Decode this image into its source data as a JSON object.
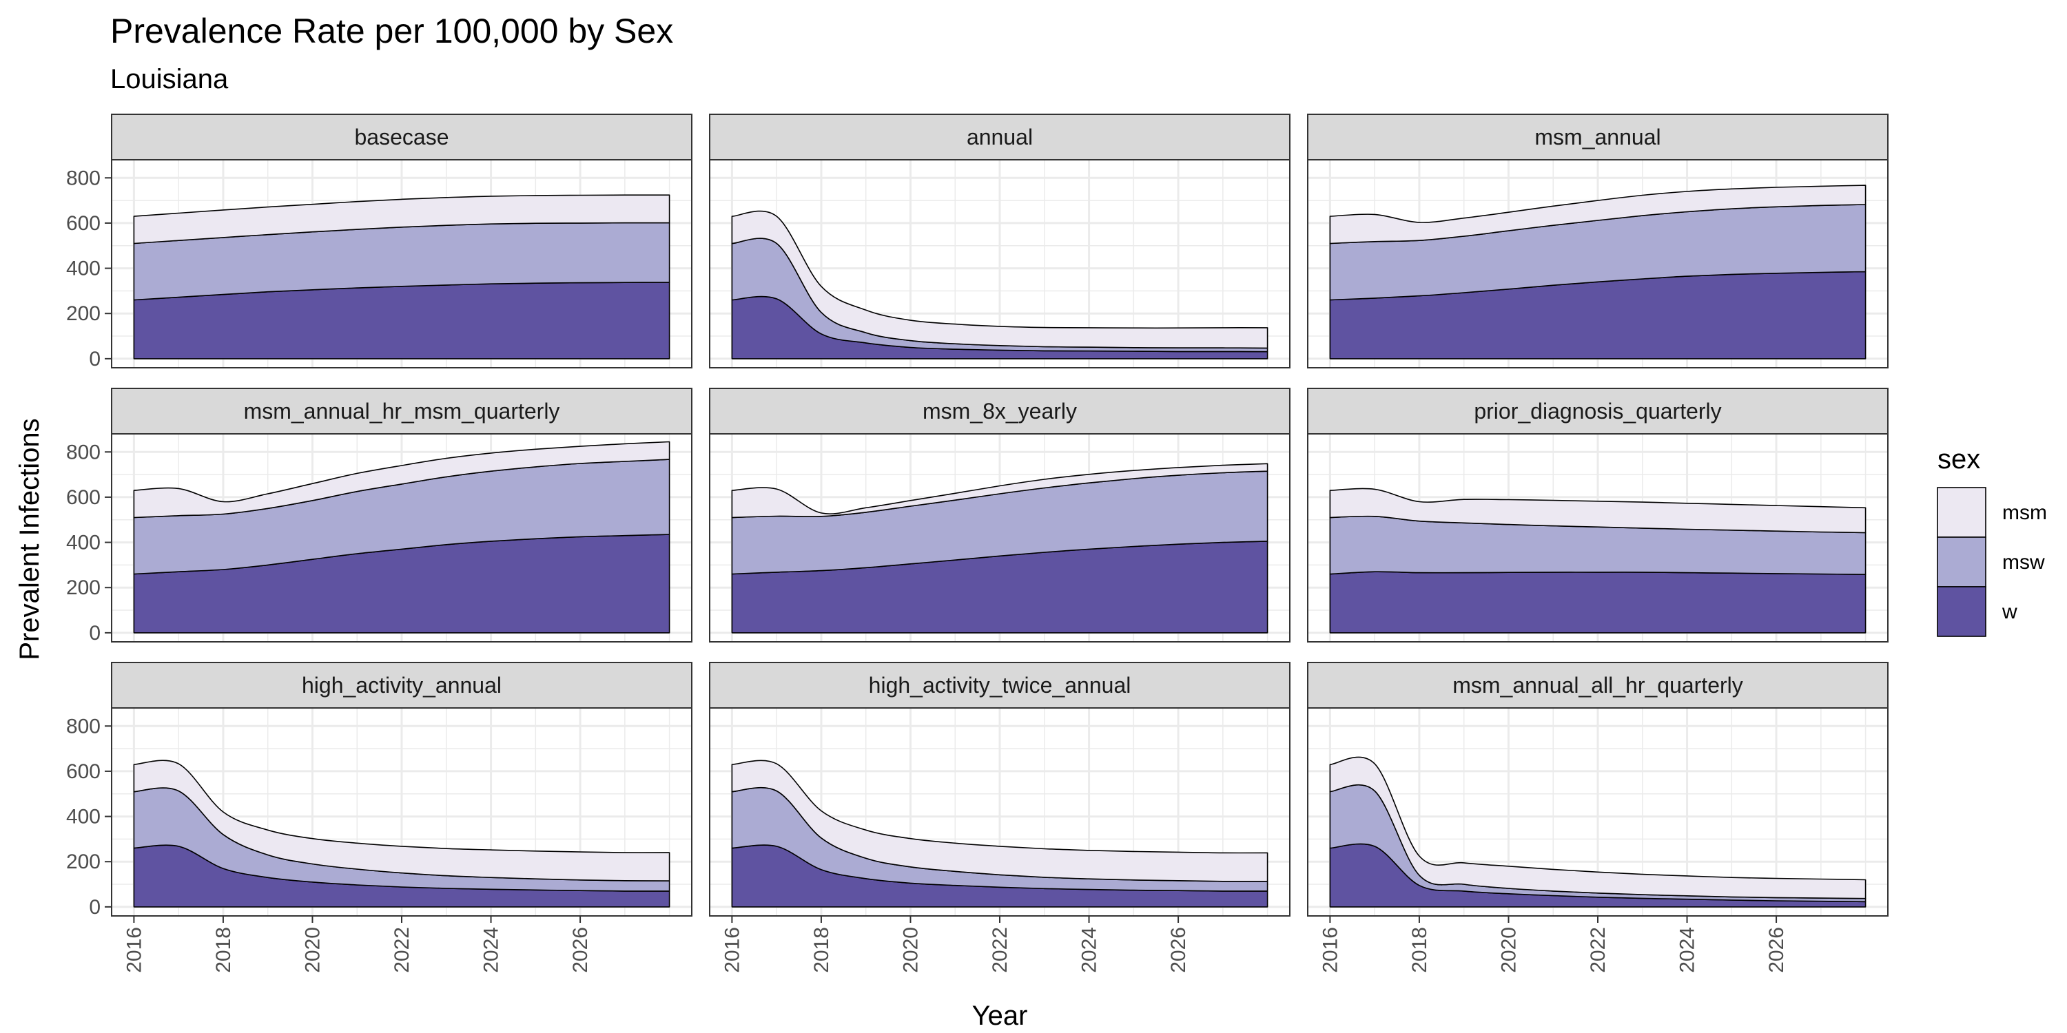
{
  "chart_data": {
    "type": "area",
    "title": "Prevalence Rate per 100,000 by Sex",
    "subtitle": "Louisiana",
    "xlabel": "Year",
    "ylabel": "Prevalent Infections",
    "xlim": [
      2015.5,
      2028.5
    ],
    "ylim": [
      -40,
      880
    ],
    "x_ticks": [
      2016,
      2018,
      2020,
      2022,
      2024,
      2026
    ],
    "y_ticks": [
      0,
      200,
      400,
      600,
      800
    ],
    "grid": true,
    "stacked": true,
    "legend": {
      "title": "sex",
      "position": "right",
      "entries": [
        "msm",
        "msw",
        "w"
      ]
    },
    "colors": {
      "msm": "#ece8f2",
      "msw": "#ababd3",
      "w": "#5f53a1",
      "outline": "#000000",
      "strip_bg": "#d9d9d9"
    },
    "x": [
      2016,
      2017,
      2018,
      2019,
      2020,
      2021,
      2022,
      2023,
      2024,
      2025,
      2026,
      2027,
      2028
    ],
    "panels": [
      {
        "name": "basecase",
        "series": [
          {
            "name": "w",
            "values": [
              260,
              272,
              284,
              296,
              305,
              313,
              320,
              326,
              331,
              334,
              336,
              337,
              338
            ]
          },
          {
            "name": "msw",
            "values": [
              250,
              251,
              252,
              253,
              256,
              259,
              262,
              264,
              265,
              265,
              264,
              264,
              263
            ]
          },
          {
            "name": "msm",
            "values": [
              120,
              121,
              122,
              122,
              122,
              123,
              123,
              123,
              123,
              123,
              123,
              123,
              123
            ]
          }
        ]
      },
      {
        "name": "annual",
        "series": [
          {
            "name": "w",
            "values": [
              260,
              265,
              110,
              70,
              50,
              42,
              38,
              35,
              34,
              33,
              32,
              32,
              31
            ]
          },
          {
            "name": "msw",
            "values": [
              250,
              245,
              95,
              45,
              30,
              24,
              20,
              18,
              17,
              16,
              16,
              16,
              16
            ]
          },
          {
            "name": "msm",
            "values": [
              120,
              120,
              115,
              100,
              90,
              87,
              85,
              85,
              86,
              87,
              88,
              89,
              90
            ]
          }
        ]
      },
      {
        "name": "msm_annual",
        "series": [
          {
            "name": "w",
            "values": [
              260,
              268,
              278,
              292,
              308,
              325,
              340,
              353,
              365,
              373,
              378,
              382,
              385
            ]
          },
          {
            "name": "msw",
            "values": [
              250,
              250,
              245,
              250,
              258,
              265,
              272,
              280,
              285,
              290,
              294,
              296,
              297
            ]
          },
          {
            "name": "msm",
            "values": [
              120,
              120,
              80,
              80,
              82,
              85,
              88,
              90,
              90,
              88,
              86,
              85,
              85
            ]
          }
        ]
      },
      {
        "name": "msm_annual_hr_msm_quarterly",
        "series": [
          {
            "name": "w",
            "values": [
              260,
              270,
              280,
              300,
              325,
              350,
              370,
              390,
              405,
              416,
              425,
              430,
              435
            ]
          },
          {
            "name": "msw",
            "values": [
              250,
              248,
              245,
              250,
              260,
              275,
              288,
              300,
              310,
              318,
              324,
              328,
              332
            ]
          },
          {
            "name": "msm",
            "values": [
              120,
              120,
              55,
              65,
              75,
              80,
              82,
              82,
              80,
              78,
              76,
              78,
              78
            ]
          }
        ]
      },
      {
        "name": "msm_8x_yearly",
        "series": [
          {
            "name": "w",
            "values": [
              260,
              268,
              275,
              288,
              305,
              322,
              340,
              356,
              370,
              382,
              392,
              400,
              405
            ]
          },
          {
            "name": "msw",
            "values": [
              250,
              248,
              240,
              245,
              255,
              265,
              275,
              285,
              293,
              300,
              305,
              308,
              310
            ]
          },
          {
            "name": "msm",
            "values": [
              120,
              120,
              15,
              20,
              25,
              30,
              35,
              38,
              38,
              36,
              34,
              33,
              33
            ]
          }
        ]
      },
      {
        "name": "prior_diagnosis_quarterly",
        "series": [
          {
            "name": "w",
            "values": [
              260,
              270,
              266,
              266,
              267,
              268,
              268,
              268,
              266,
              264,
              262,
              260,
              258
            ]
          },
          {
            "name": "msw",
            "values": [
              250,
              245,
              228,
              220,
              212,
              205,
              200,
              195,
              192,
              190,
              188,
              186,
              185
            ]
          },
          {
            "name": "msm",
            "values": [
              120,
              120,
              86,
              104,
              110,
              113,
              114,
              115,
              115,
              114,
              113,
              112,
              110
            ]
          }
        ]
      },
      {
        "name": "high_activity_annual",
        "series": [
          {
            "name": "w",
            "values": [
              260,
              268,
              170,
              130,
              110,
              97,
              88,
              82,
              78,
              75,
              72,
              70,
              70
            ]
          },
          {
            "name": "msw",
            "values": [
              250,
              245,
              150,
              100,
              80,
              70,
              62,
              56,
              52,
              49,
              47,
              46,
              45
            ]
          },
          {
            "name": "msm",
            "values": [
              120,
              120,
              100,
              110,
              112,
              115,
              118,
              120,
              122,
              123,
              124,
              124,
              125
            ]
          }
        ]
      },
      {
        "name": "high_activity_twice_annual",
        "series": [
          {
            "name": "w",
            "values": [
              260,
              268,
              165,
              125,
              105,
              95,
              87,
              81,
              77,
              74,
              72,
              70,
              70
            ]
          },
          {
            "name": "msw",
            "values": [
              250,
              245,
              140,
              90,
              72,
              62,
              55,
              50,
              47,
              45,
              44,
              43,
              43
            ]
          },
          {
            "name": "msm",
            "values": [
              120,
              120,
              120,
              125,
              125,
              125,
              126,
              126,
              126,
              126,
              126,
              126,
              126
            ]
          }
        ]
      },
      {
        "name": "msm_annual_all_hr_quarterly",
        "series": [
          {
            "name": "w",
            "values": [
              260,
              268,
              95,
              70,
              58,
              50,
              43,
              38,
              34,
              30,
              27,
              25,
              23
            ]
          },
          {
            "name": "msw",
            "values": [
              250,
              245,
              45,
              30,
              24,
              20,
              18,
              16,
              15,
              14,
              14,
              14,
              14
            ]
          },
          {
            "name": "msm",
            "values": [
              120,
              120,
              85,
              95,
              98,
              96,
              93,
              90,
              88,
              86,
              85,
              84,
              83
            ]
          }
        ]
      }
    ]
  }
}
